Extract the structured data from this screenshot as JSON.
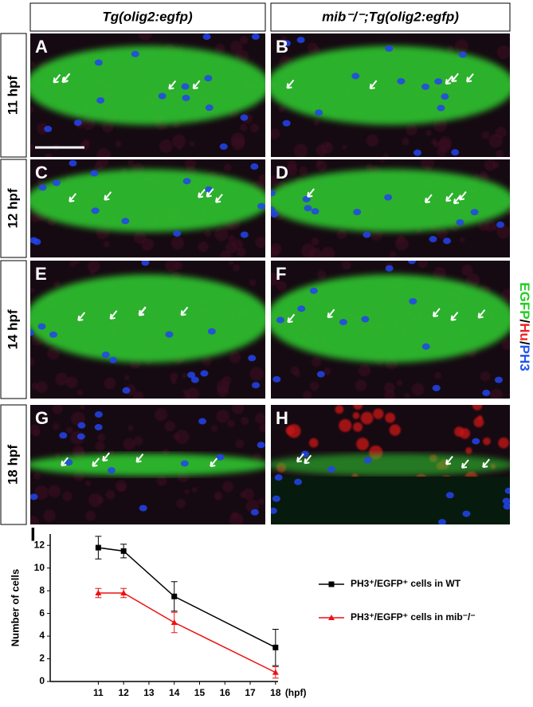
{
  "headers": [
    "Tg(olig2:egfp)",
    "mib⁻/⁻;Tg(olig2:egfp)"
  ],
  "rows": [
    "11 hpf",
    "12 hpf",
    "14 hpf",
    "18 hpf"
  ],
  "panels": [
    "A",
    "B",
    "C",
    "D",
    "E",
    "F",
    "G",
    "H"
  ],
  "channel_label": [
    {
      "text": "EGFP",
      "color": "#22cc22"
    },
    {
      "text": "/",
      "color": "#000000"
    },
    {
      "text": "Hu",
      "color": "#ee2222"
    },
    {
      "text": "/",
      "color": "#000000"
    },
    {
      "text": "PH3",
      "color": "#2255ee"
    }
  ],
  "chart_data": {
    "type": "line",
    "label": "I",
    "ylabel": "Number of cells",
    "xlabel": "(hpf)",
    "x": [
      11,
      12,
      14,
      18
    ],
    "xlim": [
      9.1,
      18.1
    ],
    "xticks": [
      11,
      12,
      13,
      14,
      15,
      16,
      17,
      18
    ],
    "ylim": [
      0,
      13
    ],
    "yticks": [
      0,
      2,
      4,
      6,
      8,
      10,
      12
    ],
    "series": [
      {
        "name": "PH3⁺/EGFP⁺ cells in WT",
        "color": "#000000",
        "marker": "square",
        "values": [
          11.8,
          11.5,
          7.5,
          3
        ],
        "errors": [
          1,
          0.6,
          1.3,
          1.6
        ]
      },
      {
        "name": "PH3⁺/EGFP⁺ cells in mib⁻/⁻",
        "color": "#ee1111",
        "marker": "triangle",
        "values": [
          7.8,
          7.8,
          5.2,
          0.8
        ],
        "errors": [
          0.4,
          0.4,
          0.9,
          0.5
        ]
      }
    ]
  }
}
